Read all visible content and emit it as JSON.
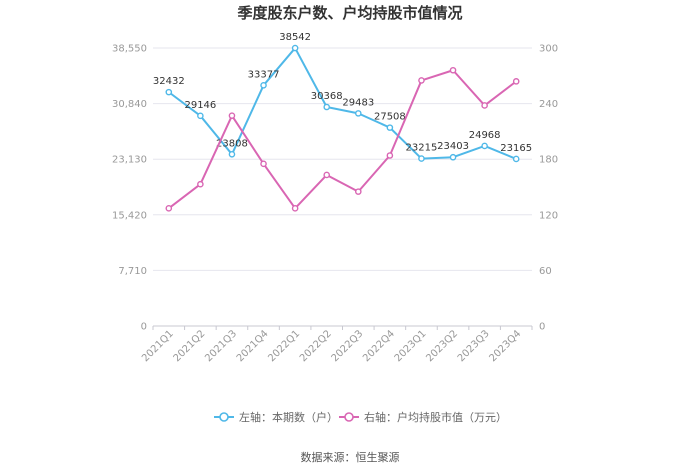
{
  "chart_data": {
    "type": "line",
    "title": "季度股东户数、户均持股市值情况",
    "categories": [
      "2021Q1",
      "2021Q2",
      "2021Q3",
      "2021Q4",
      "2022Q1",
      "2022Q2",
      "2022Q3",
      "2022Q4",
      "2023Q1",
      "2023Q2",
      "2023Q3",
      "2023Q4"
    ],
    "left_axis": {
      "ticks": [
        0,
        7710,
        15420,
        23130,
        30840,
        38550
      ],
      "tick_labels": [
        "0",
        "7,710",
        "15,420",
        "23,130",
        "30,840",
        "38,550"
      ],
      "range": [
        0,
        38550
      ]
    },
    "right_axis": {
      "ticks": [
        0,
        60,
        120,
        180,
        240,
        300
      ],
      "tick_labels": [
        "0",
        "60",
        "120",
        "180",
        "240",
        "300"
      ],
      "range": [
        0,
        300
      ]
    },
    "grid": "horizontal",
    "legend_position": "bottom",
    "series": [
      {
        "name": "左轴：本期数（户）",
        "axis": "left",
        "color": "#4fb8e8",
        "values": [
          32432,
          29146,
          23808,
          33377,
          38542,
          30368,
          29483,
          27508,
          23215,
          23403,
          24968,
          23165
        ],
        "labels": [
          "32432",
          "29146",
          "23808",
          "33377",
          "38542",
          "30368",
          "29483",
          "27508",
          "23215",
          "23403",
          "24968",
          "23165"
        ]
      },
      {
        "name": "右轴：户均持股市值（万元）",
        "axis": "right",
        "color": "#d966b3",
        "values": [
          127,
          153,
          227,
          175,
          127,
          163,
          145,
          184,
          265,
          276,
          238,
          264
        ]
      }
    ],
    "source": "数据来源：恒生聚源"
  }
}
